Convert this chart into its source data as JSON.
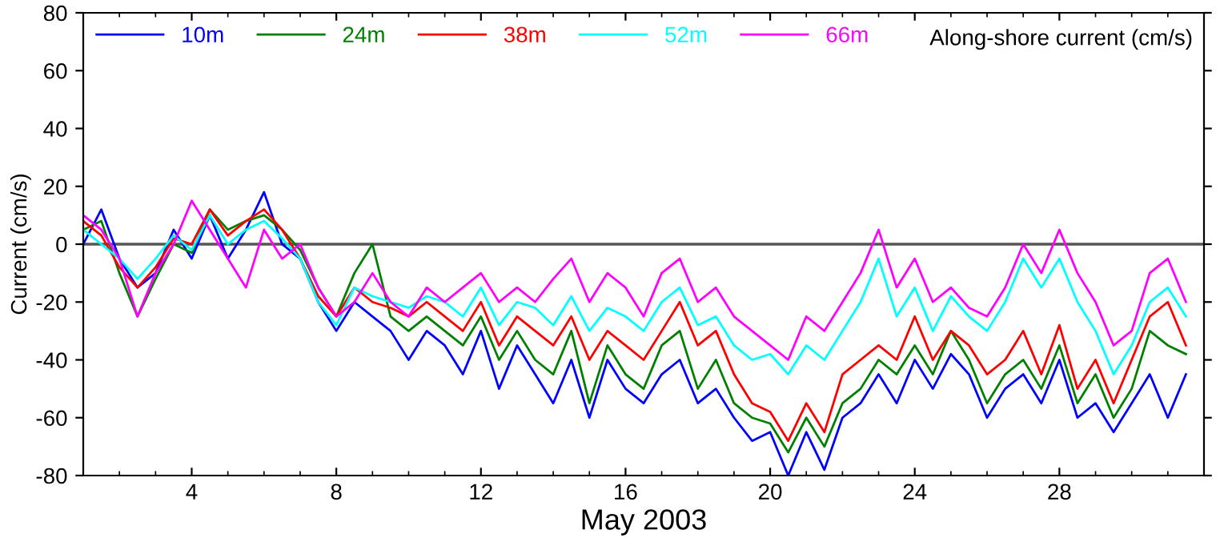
{
  "chart_data": {
    "type": "line",
    "title": "Along-shore current (cm/s)",
    "xlabel": "May 2003",
    "ylabel": "Current (cm/s)",
    "x": [
      1,
      1.5,
      2,
      2.5,
      3,
      3.5,
      4,
      4.5,
      5,
      5.5,
      6,
      6.5,
      7,
      7.5,
      8,
      8.5,
      9,
      9.5,
      10,
      10.5,
      11,
      11.5,
      12,
      12.5,
      13,
      13.5,
      14,
      14.5,
      15,
      15.5,
      16,
      16.5,
      17,
      17.5,
      18,
      18.5,
      19,
      19.5,
      20,
      20.5,
      21,
      21.5,
      22,
      22.5,
      23,
      23.5,
      24,
      24.5,
      25,
      25.5,
      26,
      26.5,
      27,
      27.5,
      28,
      28.5,
      29,
      29.5,
      30,
      30.5,
      31,
      31.5
    ],
    "xlim": [
      1,
      32
    ],
    "xticks": [
      4,
      8,
      12,
      16,
      20,
      24,
      28
    ],
    "ylim": [
      -80,
      80
    ],
    "yticks": [
      -80,
      -60,
      -40,
      -20,
      0,
      20,
      40,
      60,
      80
    ],
    "series": [
      {
        "name": "10m",
        "color": "#0000ff",
        "values": [
          0,
          12,
          -5,
          -15,
          -10,
          5,
          -5,
          10,
          -5,
          5,
          18,
          0,
          -5,
          -20,
          -30,
          -20,
          -25,
          -30,
          -40,
          -30,
          -35,
          -45,
          -30,
          -50,
          -35,
          -45,
          -55,
          -40,
          -60,
          -40,
          -50,
          -55,
          -45,
          -40,
          -55,
          -50,
          -60,
          -68,
          -65,
          -80,
          -65,
          -78,
          -60,
          -55,
          -45,
          -55,
          -40,
          -50,
          -38,
          -45,
          -60,
          -50,
          -45,
          -55,
          -40,
          -60,
          -55,
          -65,
          -55,
          -45,
          -60,
          -45
        ]
      },
      {
        "name": "24m",
        "color": "#008000",
        "values": [
          5,
          8,
          -10,
          -25,
          -12,
          0,
          -3,
          12,
          5,
          8,
          10,
          5,
          -2,
          -15,
          -25,
          -10,
          0,
          -25,
          -30,
          -25,
          -30,
          -35,
          -25,
          -40,
          -30,
          -40,
          -45,
          -30,
          -55,
          -35,
          -45,
          -50,
          -35,
          -30,
          -50,
          -40,
          -55,
          -60,
          -62,
          -72,
          -60,
          -70,
          -55,
          -50,
          -40,
          -45,
          -35,
          -45,
          -30,
          -40,
          -55,
          -45,
          -40,
          -50,
          -35,
          -55,
          -45,
          -60,
          -50,
          -30,
          -35,
          -38
        ]
      },
      {
        "name": "38m",
        "color": "#ff0000",
        "values": [
          8,
          3,
          -8,
          -15,
          -8,
          2,
          0,
          12,
          3,
          8,
          12,
          5,
          -5,
          -18,
          -25,
          -15,
          -20,
          -22,
          -25,
          -20,
          -25,
          -30,
          -20,
          -35,
          -25,
          -30,
          -35,
          -25,
          -40,
          -30,
          -35,
          -40,
          -30,
          -20,
          -35,
          -30,
          -45,
          -55,
          -58,
          -68,
          -55,
          -65,
          -45,
          -40,
          -35,
          -40,
          -25,
          -40,
          -30,
          -35,
          -45,
          -40,
          -30,
          -45,
          -28,
          -50,
          -40,
          -55,
          -40,
          -25,
          -20,
          -35
        ]
      },
      {
        "name": "52m",
        "color": "#00ffff",
        "values": [
          5,
          0,
          -5,
          -12,
          -5,
          3,
          -2,
          10,
          0,
          5,
          8,
          2,
          -5,
          -20,
          -28,
          -15,
          -18,
          -20,
          -22,
          -18,
          -20,
          -25,
          -15,
          -28,
          -20,
          -22,
          -28,
          -18,
          -30,
          -22,
          -25,
          -30,
          -20,
          -15,
          -28,
          -25,
          -35,
          -40,
          -38,
          -45,
          -35,
          -40,
          -30,
          -20,
          -5,
          -25,
          -15,
          -30,
          -18,
          -25,
          -30,
          -20,
          -5,
          -15,
          -5,
          -20,
          -30,
          -45,
          -35,
          -20,
          -15,
          -25
        ]
      },
      {
        "name": "66m",
        "color": "#ff00ff",
        "values": [
          10,
          5,
          -5,
          -25,
          -10,
          0,
          15,
          5,
          -5,
          -15,
          5,
          -5,
          0,
          -15,
          -25,
          -20,
          -10,
          -20,
          -25,
          -15,
          -20,
          -15,
          -10,
          -20,
          -15,
          -20,
          -12,
          -5,
          -20,
          -10,
          -15,
          -25,
          -10,
          -5,
          -20,
          -15,
          -25,
          -30,
          -35,
          -40,
          -25,
          -30,
          -20,
          -10,
          5,
          -15,
          -5,
          -20,
          -15,
          -22,
          -25,
          -15,
          0,
          -10,
          5,
          -10,
          -20,
          -35,
          -30,
          -10,
          -5,
          -20
        ]
      }
    ],
    "ref_lines": [
      {
        "axis": "y",
        "value": 0,
        "color": "#555555"
      }
    ],
    "legend": "top left",
    "grid": false
  }
}
